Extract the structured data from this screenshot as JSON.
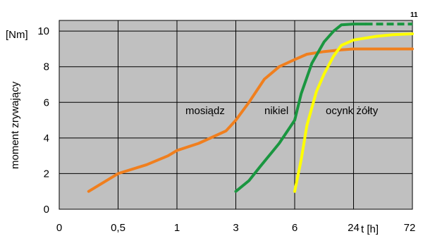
{
  "chart_data": {
    "type": "line",
    "title": "",
    "ylabel": "moment zrywający",
    "yunit": "[Nm]",
    "xlabel": "t [h]",
    "x_ticks": [
      "0",
      "0,5",
      "1",
      "3",
      "6",
      "24",
      "72"
    ],
    "y_ticks": [
      "0",
      "2",
      "4",
      "6",
      "8",
      "10"
    ],
    "ylim": [
      0,
      10.6
    ],
    "grid": true,
    "annotations": [
      {
        "text": "11",
        "series": "nikiel"
      }
    ],
    "colors": {
      "plot_bg": "#c0c0c0",
      "grid": "#000000"
    },
    "series": [
      {
        "name": "mosiądz",
        "color": "#f07f1e",
        "x": [
          0.25,
          0.5,
          0.7,
          0.9,
          1,
          1.5,
          2.5,
          3,
          3.5,
          4.2,
          5,
          6,
          8,
          12,
          18,
          24,
          40,
          72
        ],
        "y": [
          1.0,
          2.0,
          2.5,
          3.0,
          3.3,
          3.7,
          4.4,
          5.0,
          6.0,
          7.3,
          8.0,
          8.4,
          8.7,
          8.85,
          8.95,
          9.0,
          9.0,
          9.0
        ]
      },
      {
        "name": "nikiel",
        "color": "#1a9640",
        "x": [
          3,
          3.5,
          4,
          5,
          6,
          7,
          9,
          12,
          15,
          18,
          24,
          30
        ],
        "y": [
          1.0,
          1.6,
          2.4,
          3.7,
          5.0,
          6.5,
          8.2,
          9.4,
          10.0,
          10.35,
          10.4,
          10.4
        ]
      },
      {
        "name": "nikiel-dashed",
        "color": "#1a9640",
        "dashed": true,
        "x": [
          30,
          72
        ],
        "y": [
          10.4,
          10.4
        ]
      },
      {
        "name": "ocynk żółty",
        "color": "#ffff00",
        "x": [
          6,
          7,
          8,
          10,
          12,
          15,
          18,
          24,
          36,
          50,
          72
        ],
        "y": [
          1.0,
          2.8,
          4.7,
          6.6,
          7.6,
          8.6,
          9.2,
          9.5,
          9.7,
          9.8,
          9.85
        ]
      }
    ],
    "labels": [
      {
        "text": "mosiądz",
        "series": "mosiądz"
      },
      {
        "text": "nikiel",
        "series": "nikiel"
      },
      {
        "text": "ocynk żółty",
        "series": "ocynk żółty"
      }
    ]
  }
}
